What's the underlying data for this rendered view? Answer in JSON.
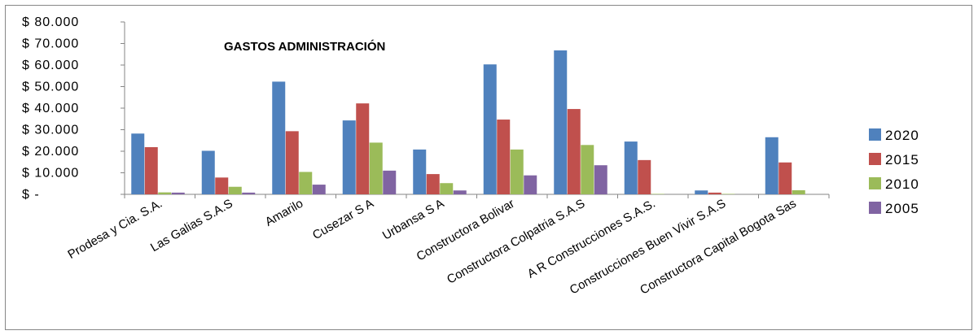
{
  "chart_data": {
    "type": "bar",
    "title": "GASTOS ADMINISTRACIÓN",
    "xlabel": "",
    "ylabel": "",
    "categories": [
      "Prodesa y Cia. S.A.",
      "Las Galias S.A.S",
      "Amarilo",
      "Cusezar S A",
      "Urbansa S A",
      "Constructora Bolivar",
      "Constructora Colpatria S.A.S",
      "A R Construcciones S.A.S.",
      "Construcciones Buen Vivir S.A.S",
      "Constructora Capital Bogota Sas"
    ],
    "series": [
      {
        "name": "2020",
        "color": "#4F81BD",
        "values": [
          28200,
          20200,
          52300,
          34300,
          20800,
          60300,
          66800,
          24500,
          1800,
          26500
        ]
      },
      {
        "name": "2015",
        "color": "#C0504D",
        "values": [
          21900,
          7800,
          29300,
          42200,
          9400,
          34700,
          39600,
          15900,
          800,
          14800
        ]
      },
      {
        "name": "2010",
        "color": "#9BBB59",
        "values": [
          900,
          3500,
          10400,
          24000,
          5200,
          20800,
          22900,
          200,
          200,
          1900
        ]
      },
      {
        "name": "2005",
        "color": "#8064A2",
        "values": [
          800,
          800,
          4500,
          11000,
          1800,
          8800,
          13500,
          0,
          0,
          0
        ]
      }
    ],
    "yticks": [
      "$ -",
      "$ 10.000",
      "$ 20.000",
      "$ 30.000",
      "$ 40.000",
      "$ 50.000",
      "$ 60.000",
      "$ 70.000",
      "$ 80.000"
    ],
    "ylim": [
      0,
      80000
    ],
    "grid": false,
    "legend_position": "right"
  }
}
